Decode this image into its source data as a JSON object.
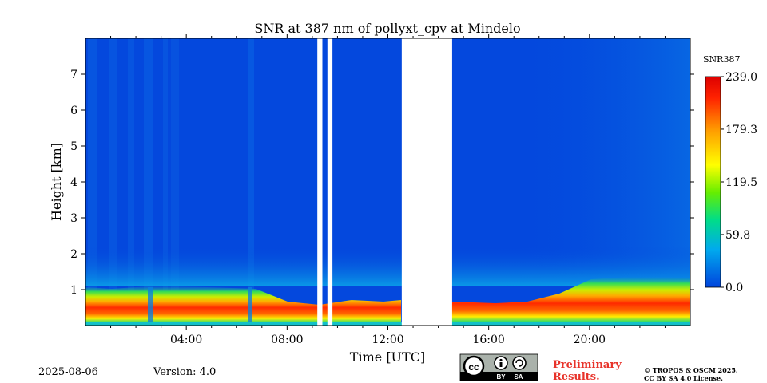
{
  "chart_data": {
    "type": "heatmap",
    "title": "SNR at 387 nm of pollyxt_cpv at Mindelo",
    "xlabel": "Time [UTC]",
    "ylabel": "Height [km]",
    "xlim_hours": [
      0,
      24
    ],
    "ylim_km": [
      0,
      8
    ],
    "x_ticks": [
      {
        "hour": 4,
        "label": "04:00"
      },
      {
        "hour": 8,
        "label": "08:00"
      },
      {
        "hour": 12,
        "label": "12:00"
      },
      {
        "hour": 16,
        "label": "16:00"
      },
      {
        "hour": 20,
        "label": "20:00"
      }
    ],
    "y_ticks": [
      {
        "km": 1,
        "label": "1"
      },
      {
        "km": 2,
        "label": "2"
      },
      {
        "km": 3,
        "label": "3"
      },
      {
        "km": 4,
        "label": "4"
      },
      {
        "km": 5,
        "label": "5"
      },
      {
        "km": 6,
        "label": "6"
      },
      {
        "km": 7,
        "label": "7"
      }
    ],
    "colorbar": {
      "label": "SNR387",
      "range": [
        0.0,
        239.0
      ],
      "ticks": [
        "239.0",
        "179.3",
        "119.5",
        "59.8",
        "0.0"
      ],
      "tick_values": [
        239.0,
        179.3,
        119.5,
        59.8,
        0.0
      ],
      "colors": [
        "#0044dd",
        "#00aaee",
        "#00dd88",
        "#66ee00",
        "#ffff00",
        "#ff9900",
        "#ff2200",
        "#dd0000"
      ]
    },
    "data_gaps_hours": [
      [
        9.2,
        9.4
      ],
      [
        9.6,
        9.8
      ],
      [
        12.55,
        14.55
      ]
    ],
    "layers": [
      {
        "name": "near-surface high SNR layer",
        "height_km": [
          0.0,
          0.6
        ],
        "snr_peak": 239.0
      },
      {
        "name": "background",
        "height_km": [
          0.6,
          8.0
        ],
        "snr": 0.0
      }
    ]
  },
  "footer": {
    "date": "2025-08-06",
    "version": "Version: 4.0",
    "license_badge": {
      "cc": "cc",
      "by": "BY",
      "sa": "SA"
    },
    "preliminary_line1": "Preliminary",
    "preliminary_line2": "Results.",
    "copyright_line1": "© TROPOS & OSCM 2025.",
    "copyright_line2": "CC BY SA 4.0 License."
  },
  "colors": {
    "preliminary": "#e8332a",
    "plot_background": "#0448dd"
  }
}
